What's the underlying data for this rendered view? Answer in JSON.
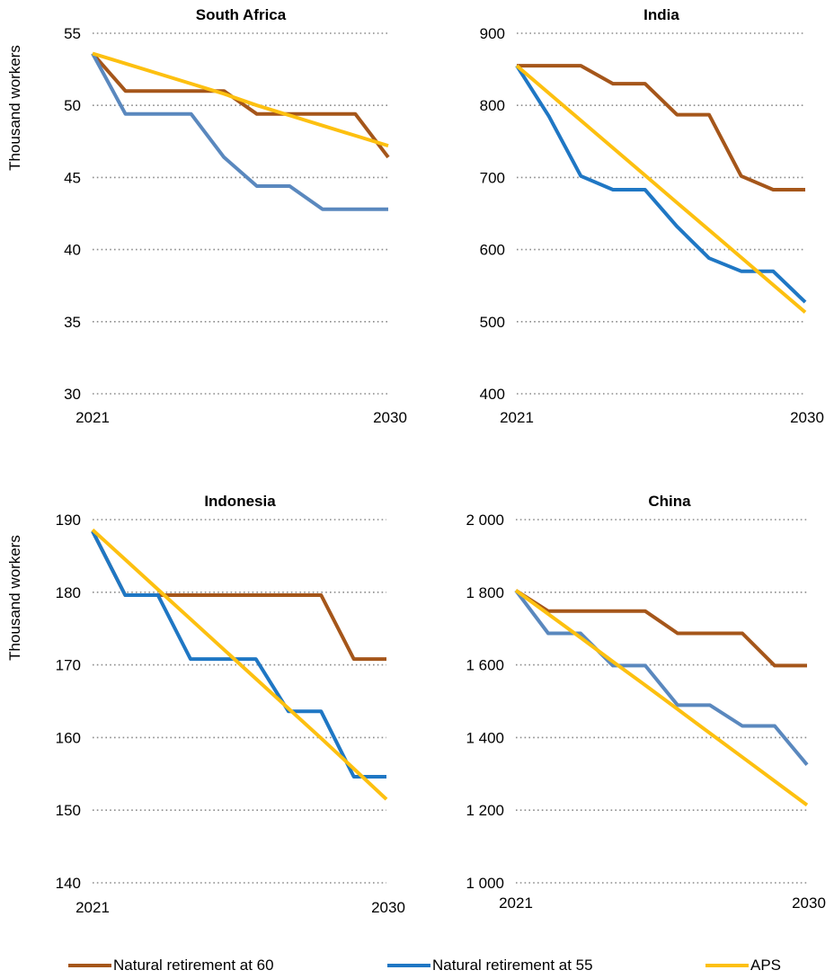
{
  "chart_data": [
    {
      "type": "line",
      "title": "South Africa",
      "ylabel": "Thousand workers",
      "x_tick_labels": [
        "2021",
        "2030"
      ],
      "y_tick_labels": [
        "55",
        "50",
        "45",
        "40",
        "35",
        "30"
      ],
      "x": [
        2021,
        2022,
        2023,
        2024,
        2025,
        2026,
        2027,
        2028,
        2029,
        2030
      ],
      "xlim": [
        2021,
        2030
      ],
      "ylim": [
        30,
        55
      ],
      "grid": true,
      "series": [
        {
          "name": "Natural retirement at 60",
          "values": [
            53.6,
            51.0,
            51.0,
            51.0,
            51.0,
            49.4,
            49.4,
            49.4,
            49.4,
            46.4
          ]
        },
        {
          "name": "Natural retirement at 55",
          "values": [
            53.6,
            49.4,
            49.4,
            49.4,
            46.4,
            44.4,
            44.4,
            42.8,
            42.8,
            42.8
          ]
        },
        {
          "name": "APS",
          "values": [
            53.6,
            52.9,
            52.2,
            51.5,
            50.8,
            50.0,
            49.3,
            48.6,
            47.9,
            47.2
          ]
        }
      ]
    },
    {
      "type": "line",
      "title": "India",
      "ylabel": "",
      "x_tick_labels": [
        "2021",
        "2030"
      ],
      "y_tick_labels": [
        "900",
        "800",
        "700",
        "600",
        "500",
        "400"
      ],
      "x": [
        2021,
        2022,
        2023,
        2024,
        2025,
        2026,
        2027,
        2028,
        2029,
        2030
      ],
      "xlim": [
        2021,
        2030
      ],
      "ylim": [
        400,
        900
      ],
      "grid": true,
      "series": [
        {
          "name": "Natural retirement at 60",
          "values": [
            855,
            855,
            855,
            830,
            830,
            787,
            787,
            702,
            683,
            683
          ]
        },
        {
          "name": "Natural retirement at 55",
          "values": [
            855,
            785,
            702,
            683,
            683,
            632,
            588,
            570,
            570,
            527
          ]
        },
        {
          "name": "APS",
          "values": [
            855,
            817,
            779,
            741,
            703,
            665,
            627,
            589,
            551,
            513
          ]
        }
      ]
    },
    {
      "type": "line",
      "title": "Indonesia",
      "ylabel": "Thousand workers",
      "x_tick_labels": [
        "2021",
        "2030"
      ],
      "y_tick_labels": [
        "190",
        "180",
        "170",
        "160",
        "150",
        "140"
      ],
      "x": [
        2021,
        2022,
        2023,
        2024,
        2025,
        2026,
        2027,
        2028,
        2029,
        2030
      ],
      "xlim": [
        2021,
        2030
      ],
      "ylim": [
        140,
        190
      ],
      "grid": true,
      "series": [
        {
          "name": "Natural retirement at 60",
          "values": [
            188.4,
            179.6,
            179.6,
            179.6,
            179.6,
            179.6,
            179.6,
            179.6,
            170.8,
            170.8
          ]
        },
        {
          "name": "Natural retirement at 55",
          "values": [
            188.4,
            179.6,
            179.6,
            170.8,
            170.8,
            170.8,
            163.6,
            163.6,
            154.6,
            154.6
          ]
        },
        {
          "name": "APS",
          "values": [
            188.6,
            184.5,
            180.4,
            176.3,
            172.2,
            168.1,
            164.0,
            159.9,
            155.7,
            151.5
          ]
        }
      ]
    },
    {
      "type": "line",
      "title": "China",
      "ylabel": "",
      "x_tick_labels": [
        "2021",
        "2030"
      ],
      "y_tick_labels": [
        "2 000",
        "1 800",
        "1 600",
        "1 400",
        "1 200",
        "1 000"
      ],
      "x": [
        2021,
        2022,
        2023,
        2024,
        2025,
        2026,
        2027,
        2028,
        2029,
        2030
      ],
      "xlim": [
        2021,
        2030
      ],
      "ylim": [
        1000,
        2000
      ],
      "grid": true,
      "series": [
        {
          "name": "Natural retirement at 60",
          "values": [
            1805,
            1748,
            1748,
            1748,
            1748,
            1687,
            1687,
            1687,
            1598,
            1598
          ]
        },
        {
          "name": "Natural retirement at 55",
          "values": [
            1805,
            1687,
            1687,
            1598,
            1598,
            1489,
            1489,
            1432,
            1432,
            1325
          ]
        },
        {
          "name": "APS",
          "values": [
            1805,
            1740,
            1675,
            1609,
            1544,
            1478,
            1412,
            1346,
            1280,
            1214
          ]
        }
      ]
    }
  ],
  "legend": {
    "items": [
      {
        "label": "Natural retirement at 60",
        "color": "#A5561A"
      },
      {
        "label": "Natural retirement at 55",
        "color": "#1F77C4"
      },
      {
        "label": "APS",
        "color": "#FDC010"
      }
    ]
  },
  "colors": {
    "series_60": "#A5561A",
    "series_55": "#1F77C4",
    "series_55_muted": "#5A88BE",
    "series_aps": "#FDC010",
    "grid": "#8C8C8C"
  }
}
